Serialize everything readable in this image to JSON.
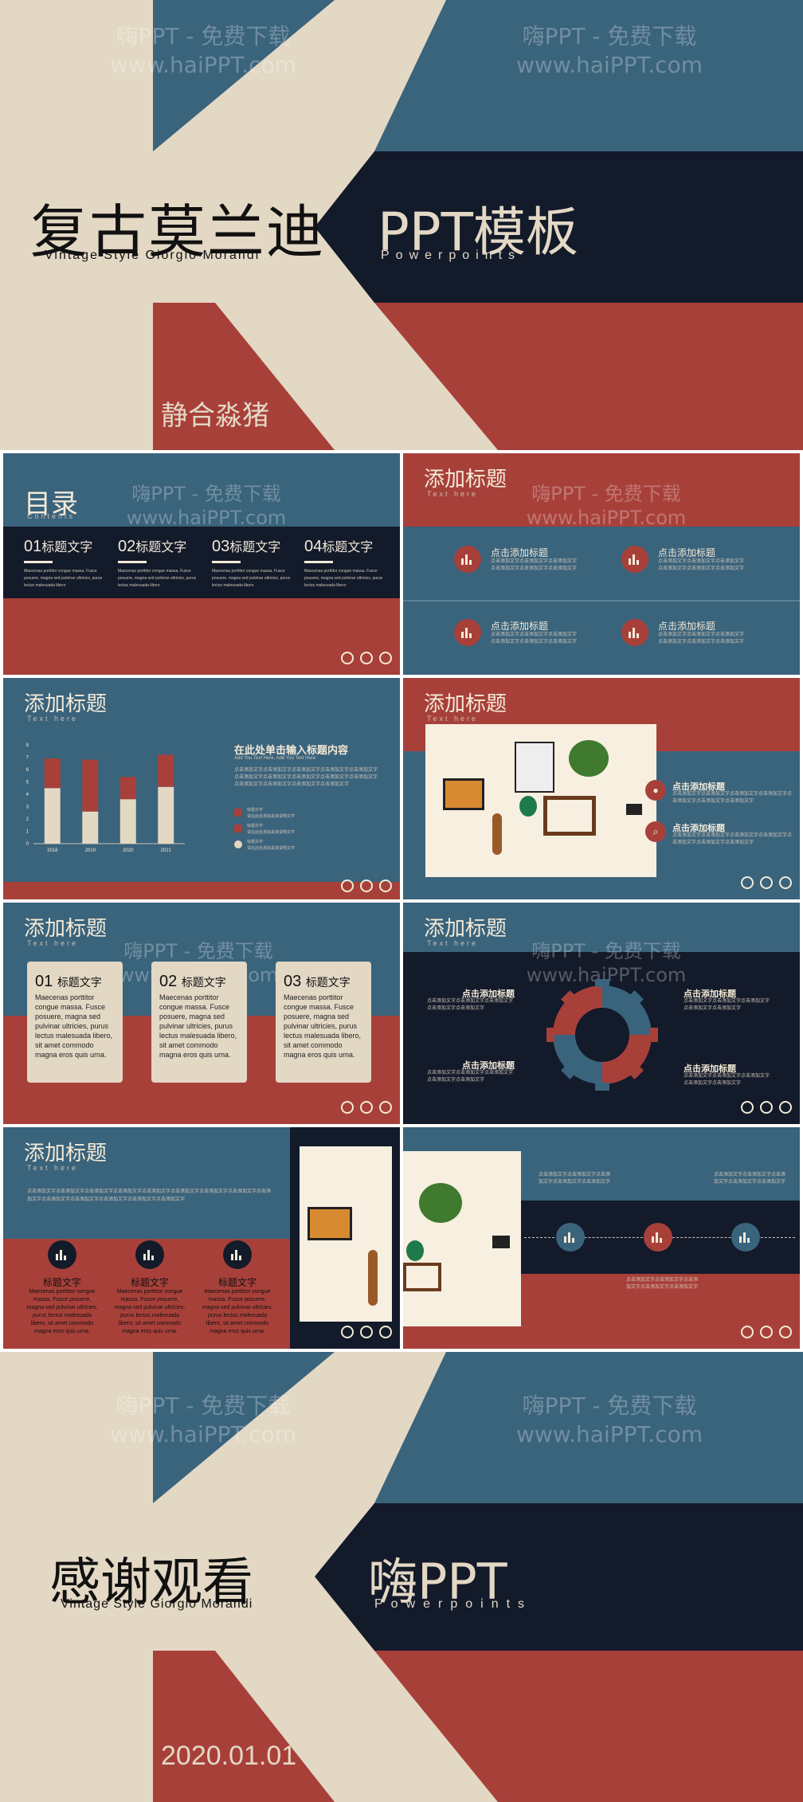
{
  "colors": {
    "cream": "#e3d8c4",
    "blue": "#3a637c",
    "navy": "#131a2a",
    "red": "#a8403a"
  },
  "watermark": {
    "line1": "嗨PPT - 免费下载",
    "line2": "www.haiPPT.com"
  },
  "cover": {
    "title": "复古莫兰迪",
    "subtitle": "Vintage Style Giorgio Morandi",
    "ppt": "PPT模板",
    "powerpoints": "Powerpoints",
    "author": "静合淼猪"
  },
  "toc": {
    "title": "目录",
    "contents": "Contents",
    "items": [
      {
        "num": "01",
        "label": "标题文字"
      },
      {
        "num": "02",
        "label": "标题文字"
      },
      {
        "num": "03",
        "label": "标题文字"
      },
      {
        "num": "04",
        "label": "标题文字"
      }
    ]
  },
  "slide_title": "添加标题",
  "slide_sub": "Text here",
  "features": {
    "heading": "点击添加标题"
  },
  "chart_slide": {
    "heading": "在此处单击输入标题内容",
    "subheading": "Add You Text Here, Add You Text Here"
  },
  "chart_data": {
    "type": "bar",
    "stacked": true,
    "categories": [
      "2018",
      "2019",
      "2020",
      "2021"
    ],
    "series": [
      {
        "values": [
          4.5,
          2.6,
          3.6,
          4.6
        ],
        "color": "#e3d8c4"
      },
      {
        "values": [
          2.4,
          4.2,
          1.8,
          2.6
        ],
        "color": "#a8403a"
      }
    ],
    "ylim": [
      0,
      8
    ],
    "yticks": [
      "0",
      "1",
      "2",
      "3",
      "4",
      "5",
      "6",
      "7",
      "8"
    ]
  },
  "photo_slide": {
    "item1": "点击添加标题",
    "item2": "点击添加标题"
  },
  "cards": [
    {
      "num": "01",
      "label": "标题文字",
      "text": "Maecenas porttitor congue massa. Fusce posuere, magna sed pulvinar ultricies, purus lectus malesuada libero, sit amet commodo magna eros quis urna."
    },
    {
      "num": "02",
      "label": "标题文字",
      "text": "Maecenas porttitor congue massa. Fusce posuere, magna sed pulvinar ultricies, purus lectus malesuada libero, sit amet commodo magna eros quis urna."
    },
    {
      "num": "03",
      "label": "标题文字",
      "text": "Maecenas porttitor congue massa. Fusce posuere, magna sed pulvinar ultricies, purus lectus malesuada libero, sit amet commodo magna eros quis urna."
    }
  ],
  "gear_slide": {
    "labels": [
      "点击添加标题",
      "点击添加标题",
      "点击添加标题",
      "点击添加标题"
    ]
  },
  "icons_slide": {
    "items": [
      {
        "label": "标题文字",
        "text": "Maecenas porttitor congue massa. Fusce posuere, magna sed pulvinar ultricies, purus lectus malesuada libero, sit amet commodo magna eros quis urna."
      },
      {
        "label": "标题文字",
        "text": "Maecenas porttitor congue massa. Fusce posuere, magna sed pulvinar ultricies, purus lectus malesuada libero, sit amet commodo magna eros quis urna."
      },
      {
        "label": "标题文字",
        "text": "Maecenas porttitor congue massa. Fusce posuere, magna sed pulvinar ultricies, purus lectus malesuada libero, sit amet commodo magna eros quis urna."
      }
    ]
  },
  "ending": {
    "title": "感谢观看",
    "subtitle": "Vintage Style Giorgio Morandi",
    "brand": "嗨PPT",
    "powerpoints": "Powerpoints",
    "date": "2020.01.01"
  }
}
